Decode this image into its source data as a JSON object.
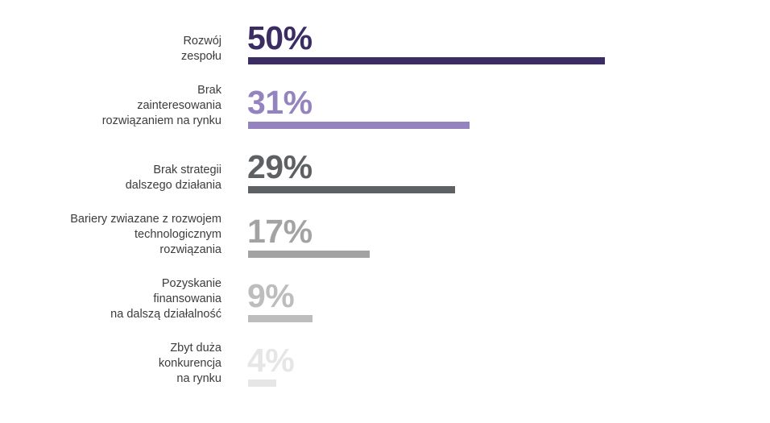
{
  "chart_data": {
    "type": "bar",
    "orientation": "horizontal",
    "categories": [
      [
        "Rozwój",
        "zespołu"
      ],
      [
        "Brak",
        "zainteresowania",
        "rozwiązaniem na rynku"
      ],
      [
        "Brak strategii",
        "dalszego działania"
      ],
      [
        "Bariery zwiazane z rozwojem",
        "technologicznym",
        "rozwiązania"
      ],
      [
        "Pozyskanie",
        "finansowania",
        "na dalszą działalność"
      ],
      [
        "Zbyt duża",
        "konkurencja",
        "na rynku"
      ]
    ],
    "values": [
      50,
      31,
      29,
      17,
      9,
      4
    ],
    "value_labels": [
      "50%",
      "31%",
      "29%",
      "17%",
      "9%",
      "4%"
    ],
    "colors": [
      "#3b2d63",
      "#9483be",
      "#5e6164",
      "#a3a3a3",
      "#bdbdbd",
      "#e6e6e6"
    ],
    "xlim": [
      0,
      100
    ],
    "grid": false,
    "legend": "none"
  }
}
